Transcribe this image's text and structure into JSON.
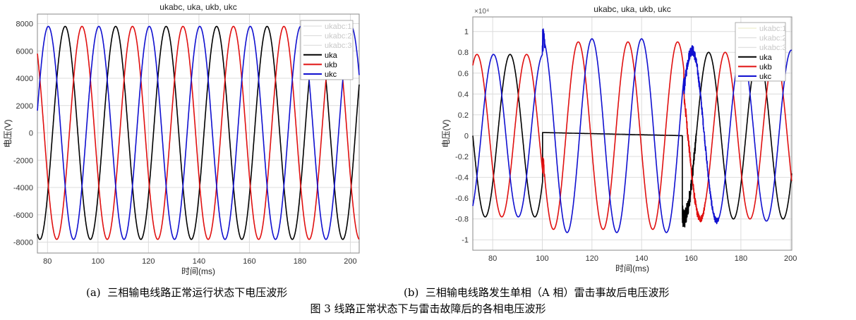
{
  "figure_caption": "图 3 线路正常状态下与雷击故障后的各相电压波形",
  "chart_data": [
    {
      "type": "line",
      "panel_label": "(a)",
      "caption": "三相输电线路正常运行状态下电压波形",
      "title": "ukabc, uka, ukb, ukc",
      "xlabel": "时间(ms)",
      "ylabel": "电压(V)",
      "exponent_label": "",
      "xlim": [
        76,
        203.5
      ],
      "ylim": [
        -8800,
        8700
      ],
      "xticks": [
        80,
        100,
        120,
        140,
        160,
        180,
        200
      ],
      "yticks": [
        -8000,
        -6000,
        -4000,
        -2000,
        0,
        2000,
        4000,
        6000,
        8000
      ],
      "ytick_labels": [
        "-8000",
        "-6000",
        "-4000",
        "-2000",
        "0",
        "2000",
        "4000",
        "6000",
        "8000"
      ],
      "grid": true,
      "legend_placement": "top-right",
      "legend": [
        {
          "name": "ukabc:1",
          "color": "#d8d8d8",
          "muted": true
        },
        {
          "name": "ukabc:2",
          "color": "#d8d8d8",
          "muted": true
        },
        {
          "name": "ukabc:3",
          "color": "#d8d8d8",
          "muted": true
        },
        {
          "name": "uka",
          "color": "#000000"
        },
        {
          "name": "ukb",
          "color": "#e01010"
        },
        {
          "name": "ukc",
          "color": "#1010d0"
        }
      ],
      "series": [
        {
          "name": "uka",
          "color": "#000000",
          "segments": [
            {
              "from": 76,
              "to": 203.5,
              "amplitude": 7800,
              "period_ms": 20,
              "peak_at_ms": 87
            }
          ]
        },
        {
          "name": "ukb",
          "color": "#e01010",
          "segments": [
            {
              "from": 76,
              "to": 203.5,
              "amplitude": 7800,
              "period_ms": 20,
              "peak_at_ms": 93.67
            }
          ]
        },
        {
          "name": "ukc",
          "color": "#1010d0",
          "segments": [
            {
              "from": 76,
              "to": 203.5,
              "amplitude": 7800,
              "period_ms": 20,
              "peak_at_ms": 80.33
            }
          ]
        }
      ]
    },
    {
      "type": "line",
      "panel_label": "(b)",
      "caption": "三相输电线路发生单相（A 相）雷击事故后电压波形",
      "title": "ukabc, uka, ukb, ukc",
      "xlabel": "时间(ms)",
      "ylabel": "电压(V)",
      "exponent_label": "×10⁴",
      "xlim": [
        72,
        200.5
      ],
      "ylim": [
        -1.1,
        1.14
      ],
      "xticks": [
        80,
        100,
        120,
        140,
        160,
        180,
        200
      ],
      "yticks": [
        -1,
        -0.8,
        -0.6,
        -0.4,
        -0.2,
        0,
        0.2,
        0.4,
        0.6,
        0.8,
        1
      ],
      "ytick_labels": [
        "-1",
        "-0.8",
        "-0.6",
        "-0.4",
        "-0.2",
        "0",
        "0.2",
        "0.4",
        "0.6",
        "0.8",
        "1"
      ],
      "grid": true,
      "legend_placement": "top-right",
      "legend": [
        {
          "name": "ukabc:1",
          "color": "#e8e8c0",
          "muted": true
        },
        {
          "name": "ukabc:2",
          "color": "#d8d8d8",
          "muted": true
        },
        {
          "name": "ukabc:3",
          "color": "#d8d8d8",
          "muted": true
        },
        {
          "name": "uka",
          "color": "#000000"
        },
        {
          "name": "ukb",
          "color": "#e01010"
        },
        {
          "name": "ukc",
          "color": "#1010d0"
        }
      ],
      "series": [
        {
          "name": "uka",
          "color": "#000000",
          "segments": [
            {
              "from": 72,
              "to": 100.1,
              "amplitude": 0.78,
              "period_ms": 20,
              "peak_at_ms": 87
            },
            {
              "from": 100.1,
              "to": 156.4,
              "linear": [
                0.03,
                0.0
              ]
            },
            {
              "from": 156.4,
              "to": 200.5,
              "amplitude": 0.8,
              "period_ms": 20,
              "peak_at_ms": 167,
              "noise": 0.12,
              "noise_until": 162
            }
          ]
        },
        {
          "name": "ukb",
          "color": "#e01010",
          "segments": [
            {
              "from": 72,
              "to": 100.2,
              "amplitude": 0.78,
              "period_ms": 20,
              "peak_at_ms": 93.67
            },
            {
              "from": 100.2,
              "to": 157,
              "amplitude": 0.9,
              "period_ms": 20,
              "peak_at_ms": 114.5,
              "noise": 0.08,
              "noise_until": 101
            },
            {
              "from": 157,
              "to": 200.5,
              "amplitude": 0.8,
              "period_ms": 20,
              "peak_at_ms": 173.67,
              "noise": 0.06,
              "noise_until": 166
            }
          ]
        },
        {
          "name": "ukc",
          "color": "#1010d0",
          "segments": [
            {
              "from": 72,
              "to": 100,
              "amplitude": 0.78,
              "period_ms": 20,
              "peak_at_ms": 80.33
            },
            {
              "from": 100,
              "to": 157,
              "amplitude": 0.93,
              "period_ms": 20,
              "peak_at_ms": 120,
              "noise": 0.14,
              "noise_until": 101
            },
            {
              "from": 157,
              "to": 200.5,
              "amplitude": 0.82,
              "period_ms": 20,
              "peak_at_ms": 160.3,
              "noise": 0.06,
              "noise_until": 171
            }
          ]
        }
      ]
    }
  ]
}
